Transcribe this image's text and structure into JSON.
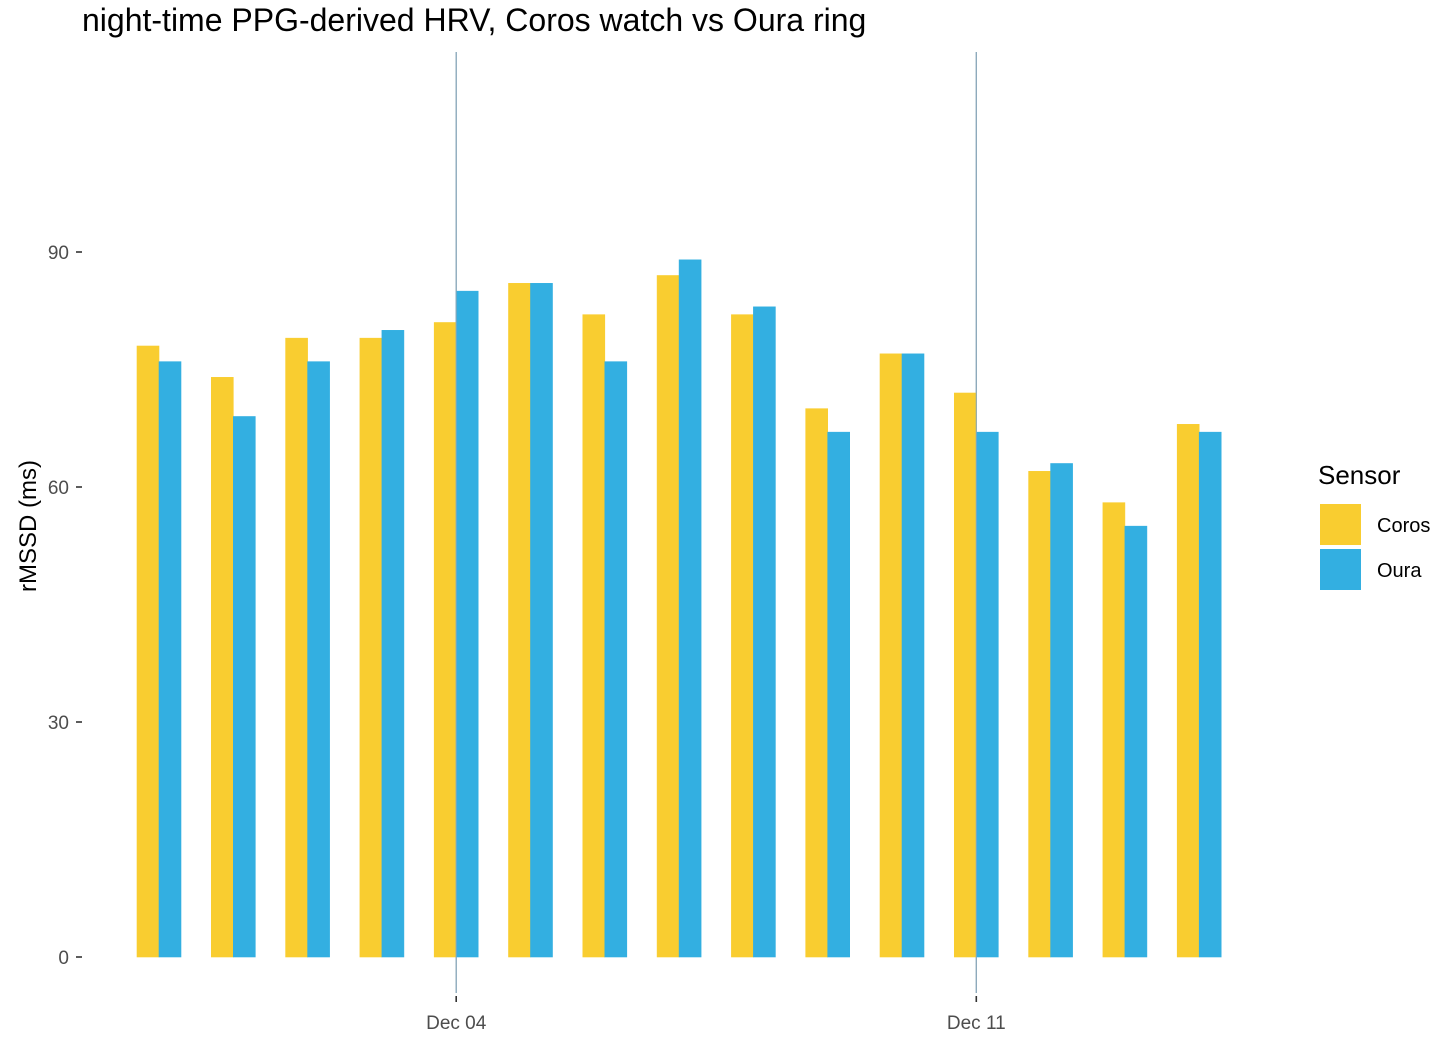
{
  "chart_data": {
    "type": "bar",
    "title": "night-time PPG-derived HRV, Coros watch vs Oura ring",
    "xlabel": "",
    "ylabel": "rMSSD (ms)",
    "x_ticks": [
      {
        "label": "Dec 04",
        "date": "2023-12-04"
      },
      {
        "label": "Dec 11",
        "date": "2023-12-11"
      }
    ],
    "dates": [
      "2023-11-30",
      "2023-12-01",
      "2023-12-02",
      "2023-12-03",
      "2023-12-04",
      "2023-12-05",
      "2023-12-06",
      "2023-12-07",
      "2023-12-08",
      "2023-12-09",
      "2023-12-10",
      "2023-12-11",
      "2023-12-12",
      "2023-12-13",
      "2023-12-14"
    ],
    "yticks": [
      0,
      30,
      60,
      90
    ],
    "ylim": [
      0,
      114
    ],
    "grid": false,
    "reference_lines": [
      "2023-12-04",
      "2023-12-11"
    ],
    "legend": {
      "title": "Sensor",
      "position": "right"
    },
    "series": [
      {
        "name": "Coros",
        "color": "#F9CD30",
        "values": [
          78,
          74,
          79,
          79,
          81,
          86,
          82,
          87,
          82,
          70,
          77,
          72,
          62,
          58,
          68
        ]
      },
      {
        "name": "Oura",
        "color": "#33AFE1",
        "values": [
          76,
          69,
          76,
          80,
          85,
          86,
          76,
          89,
          83,
          67,
          77,
          67,
          63,
          55,
          67
        ]
      }
    ],
    "reference_line_color": "#8AA8BA"
  }
}
